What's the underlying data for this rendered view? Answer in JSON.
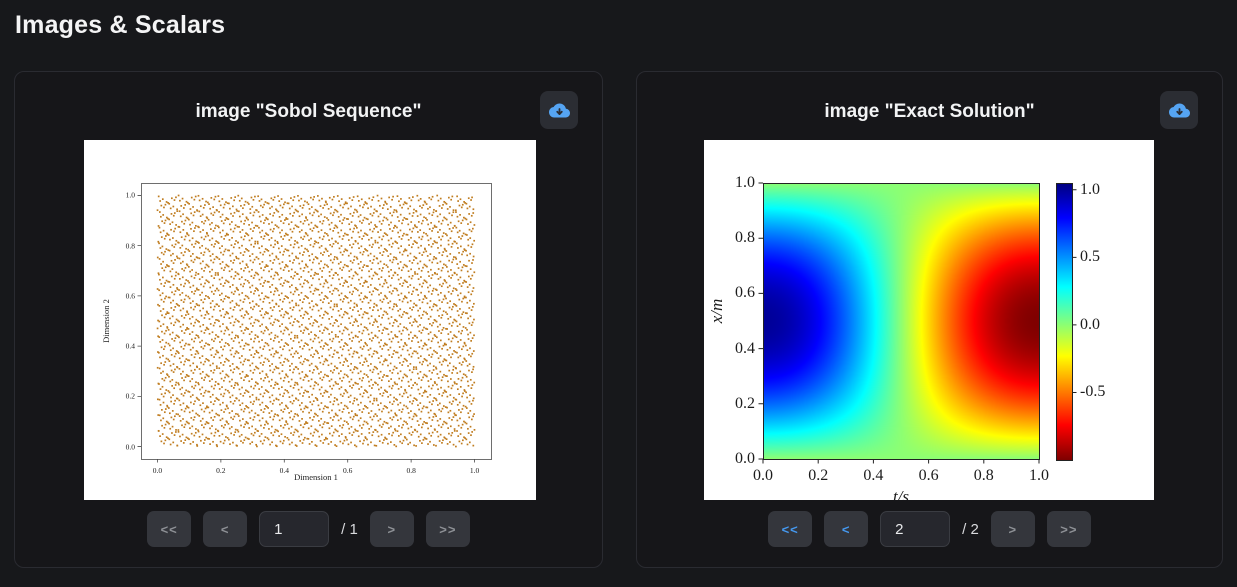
{
  "header": {
    "title": "Images & Scalars"
  },
  "colors": {
    "page_bg": "#17181b",
    "card_bg": "#161619",
    "card_border": "#2a2b31",
    "accent_blue": "#4599f0",
    "icon_blue": "#55a4f2",
    "disabled_gray": "#8e9196",
    "scatter_point": "#c07d20"
  },
  "cards": [
    {
      "title": "image \"Sobol Sequence\"",
      "download_icon": "cloud-download-icon",
      "pagination": {
        "first": {
          "label": "<<",
          "enabled": false
        },
        "prev": {
          "label": "<",
          "enabled": false
        },
        "page_value": "1",
        "total_label": "/ 1",
        "next": {
          "label": ">",
          "enabled": false
        },
        "last": {
          "label": ">>",
          "enabled": false
        }
      }
    },
    {
      "title": "image \"Exact Solution\"",
      "download_icon": "cloud-download-icon",
      "pagination": {
        "first": {
          "label": "<<",
          "enabled": true
        },
        "prev": {
          "label": "<",
          "enabled": true
        },
        "page_value": "2",
        "total_label": "/ 2",
        "next": {
          "label": ">",
          "enabled": false
        },
        "last": {
          "label": ">>",
          "enabled": false
        }
      }
    }
  ],
  "chart_data": [
    {
      "type": "scatter",
      "title": "",
      "xlabel": "Dimension 1",
      "ylabel": "Dimension 2",
      "xlim": [
        0,
        1
      ],
      "ylim": [
        0,
        1
      ],
      "x_ticks": [
        "0.0",
        "0.2",
        "0.4",
        "0.6",
        "0.8",
        "1.0"
      ],
      "y_ticks": [
        "0.0",
        "0.2",
        "0.4",
        "0.6",
        "0.8",
        "1.0"
      ],
      "point_color": "#c07d20",
      "approx_n_points": 4096,
      "generator": "sobol-2d-low-discrepancy",
      "grid": false,
      "legend": "none"
    },
    {
      "type": "heatmap",
      "title": "",
      "xlabel": "t/s",
      "ylabel": "x/m",
      "xlim": [
        0,
        1
      ],
      "ylim": [
        0,
        1
      ],
      "x_ticks": [
        "0.0",
        "0.2",
        "0.4",
        "0.6",
        "0.8",
        "1.0"
      ],
      "y_ticks": [
        "0.0",
        "0.2",
        "0.4",
        "0.6",
        "0.8",
        "1.0"
      ],
      "colormap": "jet_reversed",
      "function": "u(t,x) = sin(pi*x) * cos(pi*t)",
      "value_range": [
        -1.0,
        1.05
      ],
      "colorbar_ticks": [
        "1.0",
        "0.5",
        "0.0",
        "-0.5"
      ],
      "colorbar_position": "right",
      "grid": false,
      "legend": "none"
    }
  ]
}
